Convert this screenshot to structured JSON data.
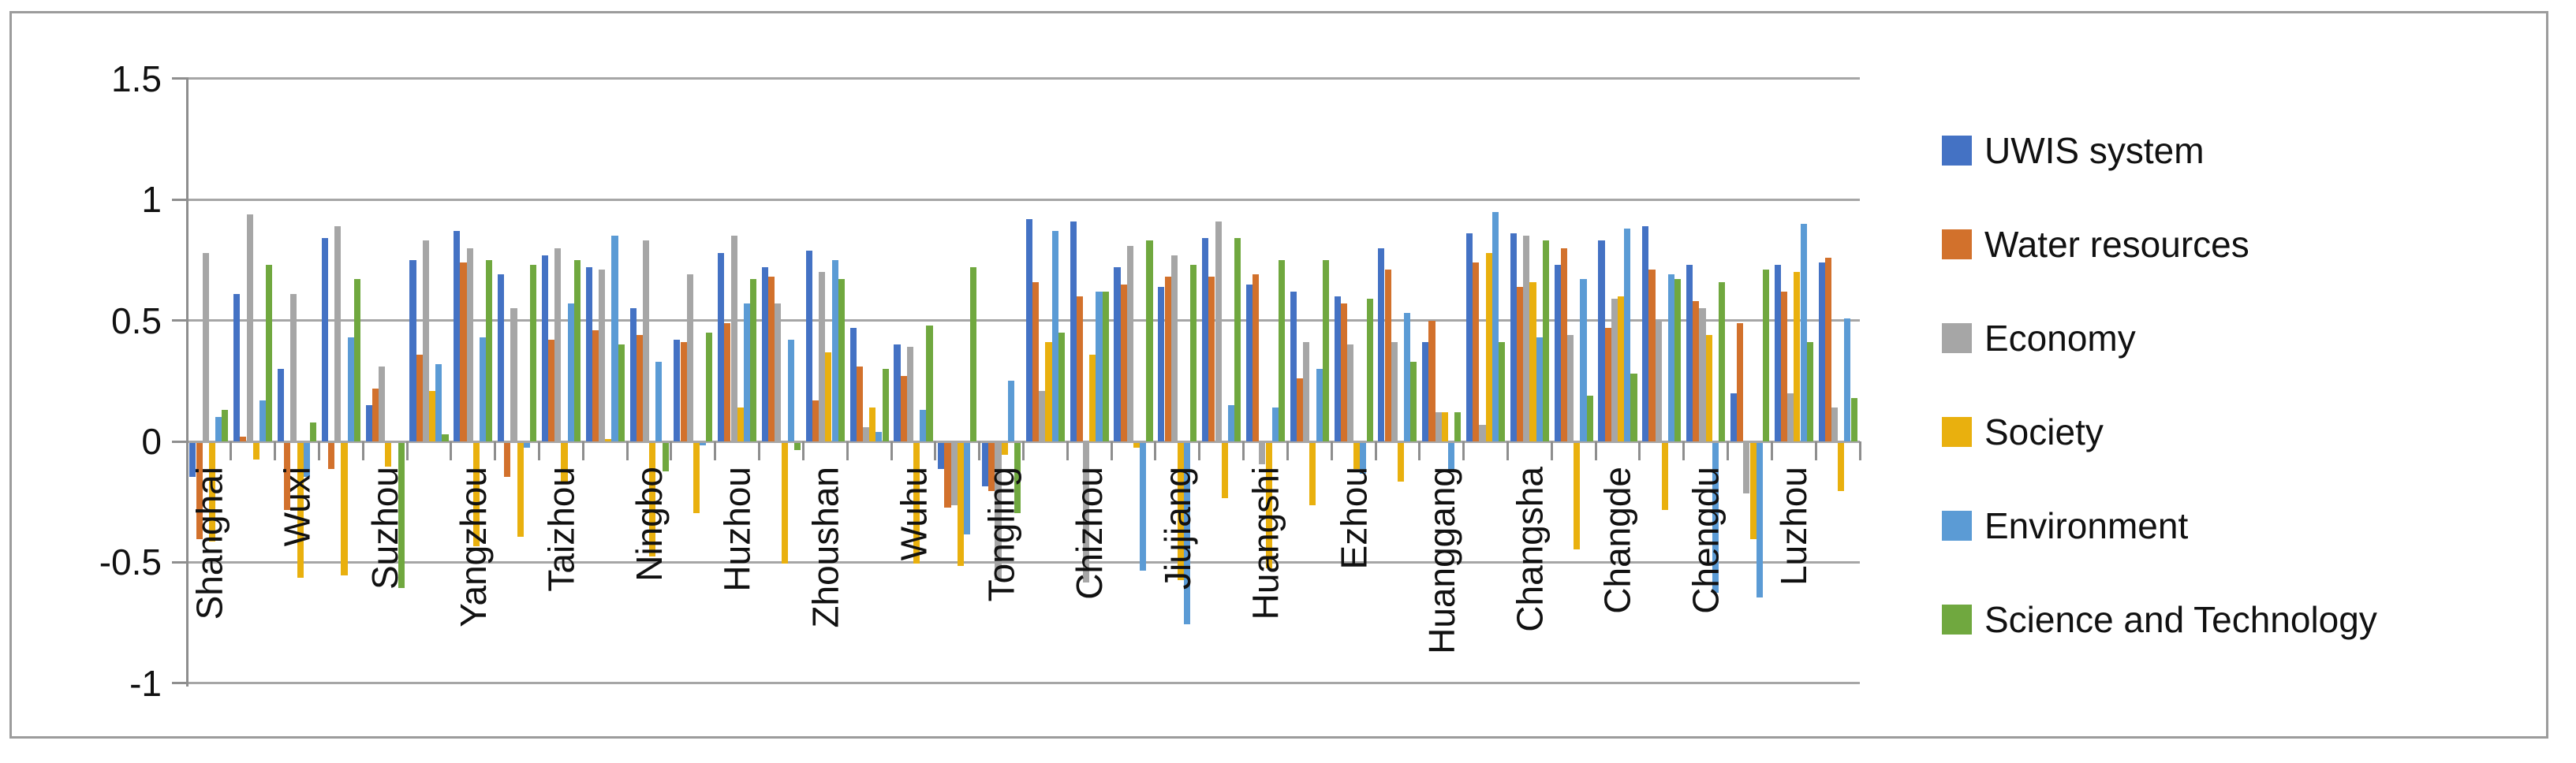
{
  "chart_data": {
    "type": "bar",
    "title": "",
    "xlabel": "",
    "ylabel": "",
    "ylim": [
      -1,
      1.5
    ],
    "grid": true,
    "legend_position": "right",
    "y_ticks": [
      {
        "label": "1.5",
        "value": 1.5
      },
      {
        "label": "1",
        "value": 1
      },
      {
        "label": "0.5",
        "value": 0.5
      },
      {
        "label": "0",
        "value": 0
      },
      {
        "label": "-0.5",
        "value": -0.5
      },
      {
        "label": "-1",
        "value": -1
      }
    ],
    "categories": [
      "Shanghai",
      "",
      "Wuxi",
      "",
      "Suzhou",
      "",
      "Yangzhou",
      "",
      "Taizhou",
      "",
      "Ningbo",
      "",
      "Huzhou",
      "",
      "Zhoushan",
      "",
      "Wuhu",
      "",
      "Tongling",
      "",
      "Chizhou",
      "",
      "Jiujiang",
      "",
      "Huangshi",
      "",
      "Ezhou",
      "",
      "Huanggang",
      "",
      "Changsha",
      "",
      "Changde",
      "",
      "Chengdu",
      "",
      "Luzhou",
      ""
    ],
    "series": [
      {
        "name": "UWIS system",
        "color": "#4472c4",
        "values": [
          -0.14,
          0.61,
          0.3,
          0.84,
          0.15,
          0.75,
          0.87,
          0.69,
          0.77,
          0.72,
          0.55,
          0.42,
          0.78,
          0.72,
          0.79,
          0.47,
          0.4,
          -0.11,
          -0.18,
          0.92,
          0.91,
          0.72,
          0.64,
          0.84,
          0.65,
          0.62,
          0.6,
          0.8,
          0.41,
          0.86,
          0.86,
          0.73,
          0.83,
          0.89,
          0.73,
          0.2,
          0.73,
          0.74
        ]
      },
      {
        "name": "Water resources",
        "color": "#d2712c",
        "values": [
          -0.4,
          0.02,
          -0.28,
          -0.11,
          0.22,
          0.36,
          0.74,
          -0.14,
          0.42,
          0.46,
          0.44,
          0.41,
          0.49,
          0.68,
          0.17,
          0.31,
          0.27,
          -0.27,
          -0.2,
          0.66,
          0.6,
          0.65,
          0.68,
          0.68,
          0.69,
          0.26,
          0.57,
          0.71,
          0.5,
          0.74,
          0.64,
          0.8,
          0.47,
          0.71,
          0.58,
          0.49,
          0.62,
          0.76
        ]
      },
      {
        "name": "Economy",
        "color": "#a6a6a6",
        "values": [
          0.78,
          0.94,
          0.61,
          0.89,
          0.31,
          0.83,
          0.8,
          0.55,
          0.8,
          0.71,
          0.83,
          0.69,
          0.85,
          0.57,
          0.7,
          0.06,
          0.39,
          -0.26,
          -0.57,
          0.21,
          -0.58,
          0.81,
          0.77,
          0.91,
          -0.09,
          0.41,
          0.4,
          0.41,
          0.12,
          0.07,
          0.85,
          0.44,
          0.59,
          0.5,
          0.55,
          -0.21,
          0.2,
          0.14
        ]
      },
      {
        "name": "Society",
        "color": "#e9b00e",
        "values": [
          -0.41,
          -0.07,
          -0.56,
          -0.55,
          -0.1,
          0.21,
          -0.43,
          -0.39,
          -0.17,
          0.01,
          -0.47,
          -0.29,
          0.14,
          -0.5,
          0.37,
          0.14,
          -0.5,
          -0.51,
          -0.05,
          0.41,
          0.36,
          -0.02,
          -0.57,
          -0.23,
          -0.52,
          -0.26,
          -0.11,
          -0.16,
          0.12,
          0.78,
          0.66,
          -0.44,
          0.6,
          -0.28,
          0.44,
          -0.4,
          0.7,
          -0.2
        ]
      },
      {
        "name": "Environment",
        "color": "#5b9bd5",
        "values": [
          0.1,
          0.17,
          -0.14,
          0.43,
          0.0,
          0.32,
          0.43,
          -0.02,
          0.57,
          0.85,
          0.33,
          -0.01,
          0.57,
          0.42,
          0.75,
          0.04,
          0.13,
          -0.38,
          0.25,
          0.87,
          0.62,
          -0.53,
          -0.75,
          0.15,
          0.14,
          0.3,
          -0.13,
          0.53,
          -0.12,
          0.95,
          0.43,
          0.67,
          0.88,
          0.69,
          -0.62,
          -0.64,
          0.9,
          0.51
        ]
      },
      {
        "name": "Science and Technology",
        "color": "#70a83f",
        "values": [
          0.13,
          0.73,
          0.08,
          0.67,
          -0.6,
          0.03,
          0.75,
          0.73,
          0.75,
          0.4,
          -0.12,
          0.45,
          0.67,
          -0.03,
          0.67,
          0.3,
          0.48,
          0.72,
          -0.29,
          0.45,
          0.62,
          0.83,
          0.73,
          0.84,
          0.75,
          0.75,
          0.59,
          0.33,
          0.12,
          0.41,
          0.83,
          0.19,
          0.28,
          0.67,
          0.66,
          0.71,
          0.41,
          0.18
        ]
      }
    ]
  }
}
